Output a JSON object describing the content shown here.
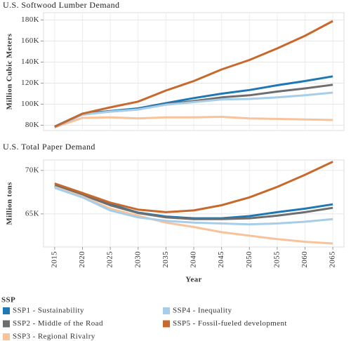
{
  "chart_data": [
    {
      "type": "line",
      "title": "U.S. Softwood Lumber Demand",
      "ylabel": "Million Cubic Meters",
      "legend_title": "SSP",
      "grid": true,
      "x": [
        2015,
        2020,
        2025,
        2030,
        2035,
        2040,
        2045,
        2050,
        2055,
        2060,
        2065
      ],
      "xlim": [
        2013,
        2067
      ],
      "ylim": [
        75000,
        187000
      ],
      "yticks": [
        {
          "value": 80000,
          "label": "80K"
        },
        {
          "value": 100000,
          "label": "100K"
        },
        {
          "value": 120000,
          "label": "120K"
        },
        {
          "value": 140000,
          "label": "140K"
        },
        {
          "value": 160000,
          "label": "160K"
        },
        {
          "value": 180000,
          "label": "180K"
        }
      ],
      "series": [
        {
          "name": "SSP1 - Sustainability",
          "color": "#1f78b4",
          "values": [
            78700,
            91000,
            93500,
            96000,
            101000,
            105800,
            110000,
            113500,
            118000,
            122000,
            126500
          ]
        },
        {
          "name": "SSP2 - Middle of the Road",
          "color": "#6e6e6e",
          "values": [
            78500,
            90500,
            93000,
            95000,
            100000,
            103000,
            106500,
            108500,
            112000,
            115000,
            118500
          ]
        },
        {
          "name": "SSP3 - Regional Rivalry",
          "color": "#f8c39a",
          "values": [
            78000,
            87000,
            87500,
            86500,
            87500,
            87500,
            88000,
            86500,
            86000,
            85500,
            85000
          ]
        },
        {
          "name": "SSP4 - Inequality",
          "color": "#a6cdea",
          "values": [
            78000,
            90000,
            93000,
            95000,
            99500,
            102000,
            104500,
            105000,
            106500,
            108500,
            111000
          ]
        },
        {
          "name": "SSP5 - Fossil-fueled development",
          "color": "#c8692b",
          "values": [
            78500,
            91000,
            97000,
            102500,
            113000,
            122000,
            133000,
            142000,
            153000,
            165000,
            179000
          ]
        }
      ]
    },
    {
      "type": "line",
      "title": "U.S. Total Paper Demand",
      "ylabel": "Million tons",
      "xlabel": "Year",
      "grid": true,
      "x": [
        2015,
        2020,
        2025,
        2030,
        2035,
        2040,
        2045,
        2050,
        2055,
        2060,
        2065
      ],
      "xlim": [
        2013,
        2067
      ],
      "ylim": [
        61200,
        71200
      ],
      "yticks": [
        {
          "value": 65000,
          "label": "65K"
        },
        {
          "value": 70000,
          "label": "70K"
        }
      ],
      "series": [
        {
          "name": "SSP1 - Sustainability",
          "color": "#1f78b4",
          "values": [
            68250,
            67300,
            66100,
            65150,
            64700,
            64500,
            64500,
            64750,
            65200,
            65600,
            66100
          ]
        },
        {
          "name": "SSP2 - Middle of the Road",
          "color": "#6e6e6e",
          "values": [
            68200,
            67200,
            66000,
            65100,
            64600,
            64400,
            64400,
            64500,
            64800,
            65200,
            65700
          ]
        },
        {
          "name": "SSP3 - Regional Rivalry",
          "color": "#f8c39a",
          "values": [
            68100,
            67000,
            65600,
            64800,
            64000,
            63500,
            62900,
            62500,
            62100,
            61800,
            61600
          ]
        },
        {
          "name": "SSP4 - Inequality",
          "color": "#a6cdea",
          "values": [
            68000,
            66900,
            65400,
            64600,
            64200,
            64000,
            63900,
            63800,
            63900,
            64100,
            64400
          ]
        },
        {
          "name": "SSP5 - Fossil-fueled development",
          "color": "#c8692b",
          "values": [
            68500,
            67400,
            66300,
            65500,
            65200,
            65400,
            66000,
            66900,
            68100,
            69500,
            71000
          ]
        }
      ]
    }
  ]
}
